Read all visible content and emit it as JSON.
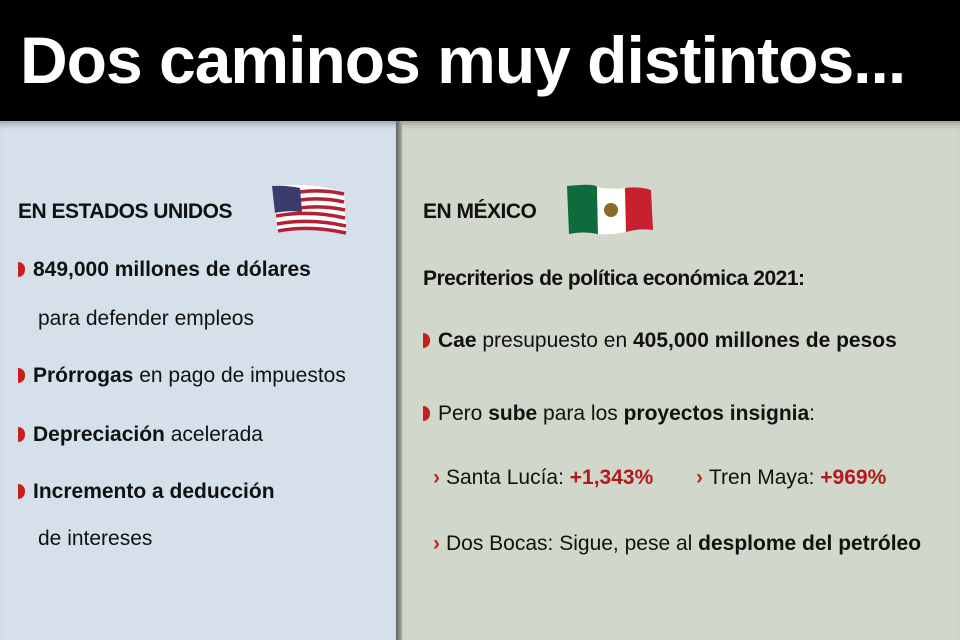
{
  "title": "Dos caminos muy distintos...",
  "usa": {
    "heading": "EN ESTADOS UNIDOS",
    "flag": "us-flag",
    "items": [
      {
        "bold": "849,000 millones de dólares",
        "rest": "",
        "line2": "para defender empleos"
      },
      {
        "bold": "Prórrogas",
        "rest": " en pago de impuestos"
      },
      {
        "bold": "Depreciación",
        "rest": " acelerada"
      },
      {
        "bold": "Incremento a deducción",
        "rest": "",
        "line2": "de intereses"
      }
    ]
  },
  "mexico": {
    "heading": "EN MÉXICO",
    "flag": "mexico-flag",
    "subtitle": "Precriterios de política económica 2021:",
    "item1": {
      "b1": "Cae",
      "t1": " presupuesto en ",
      "b2": "405,000 millones de pesos"
    },
    "item2": {
      "t1": "Pero ",
      "b1": "sube",
      "t2": " para los ",
      "b2": "proyectos insignia",
      "t3": ":"
    },
    "projects": [
      {
        "label": "Santa Lucía: ",
        "value": "+1,343%"
      },
      {
        "label": "Tren Maya: ",
        "value": "+969%"
      }
    ],
    "dos_bocas": {
      "label": "Dos Bocas: Sigue, pese al ",
      "bold": "desplome del petróleo"
    }
  },
  "colors": {
    "accent": "#b3191c",
    "left_bg": "#d5e0ea",
    "right_bg": "#d2d7cb"
  }
}
